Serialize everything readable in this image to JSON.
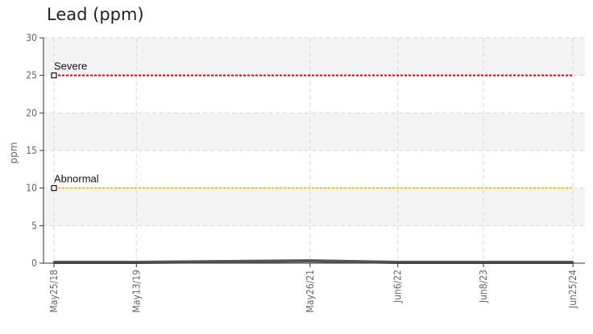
{
  "chart_data": {
    "type": "line",
    "title": "Lead (ppm)",
    "xlabel": "",
    "ylabel": "ppm",
    "ylim": [
      0,
      30
    ],
    "yticks": [
      0,
      5,
      10,
      15,
      20,
      25,
      30
    ],
    "x_range": [
      "2018-05-25",
      "2024-06-25"
    ],
    "x_ticks": [
      {
        "date": "2018-05-25",
        "label": "May25/18"
      },
      {
        "date": "2019-05-13",
        "label": "May13/19"
      },
      {
        "date": "2021-05-26",
        "label": "May26/21"
      },
      {
        "date": "2022-06-06",
        "label": "Jun6/22"
      },
      {
        "date": "2023-06-08",
        "label": "Jun8/23"
      },
      {
        "date": "2024-06-25",
        "label": "Jun25/24"
      }
    ],
    "grid": true,
    "series": [
      {
        "color": "#555555",
        "points": [
          {
            "x": "2018-05-25",
            "y": 0
          },
          {
            "x": "2019-05-13",
            "y": 0
          },
          {
            "x": "2021-05-26",
            "y": 0.2
          },
          {
            "x": "2022-06-06",
            "y": 0
          },
          {
            "x": "2023-06-08",
            "y": 0
          },
          {
            "x": "2024-06-25",
            "y": 0
          }
        ]
      }
    ],
    "limits": [
      {
        "name": "Severe",
        "value": 25,
        "color": "#e8000b"
      },
      {
        "name": "Abnormal",
        "value": 10,
        "color": "#f5c000"
      }
    ]
  }
}
